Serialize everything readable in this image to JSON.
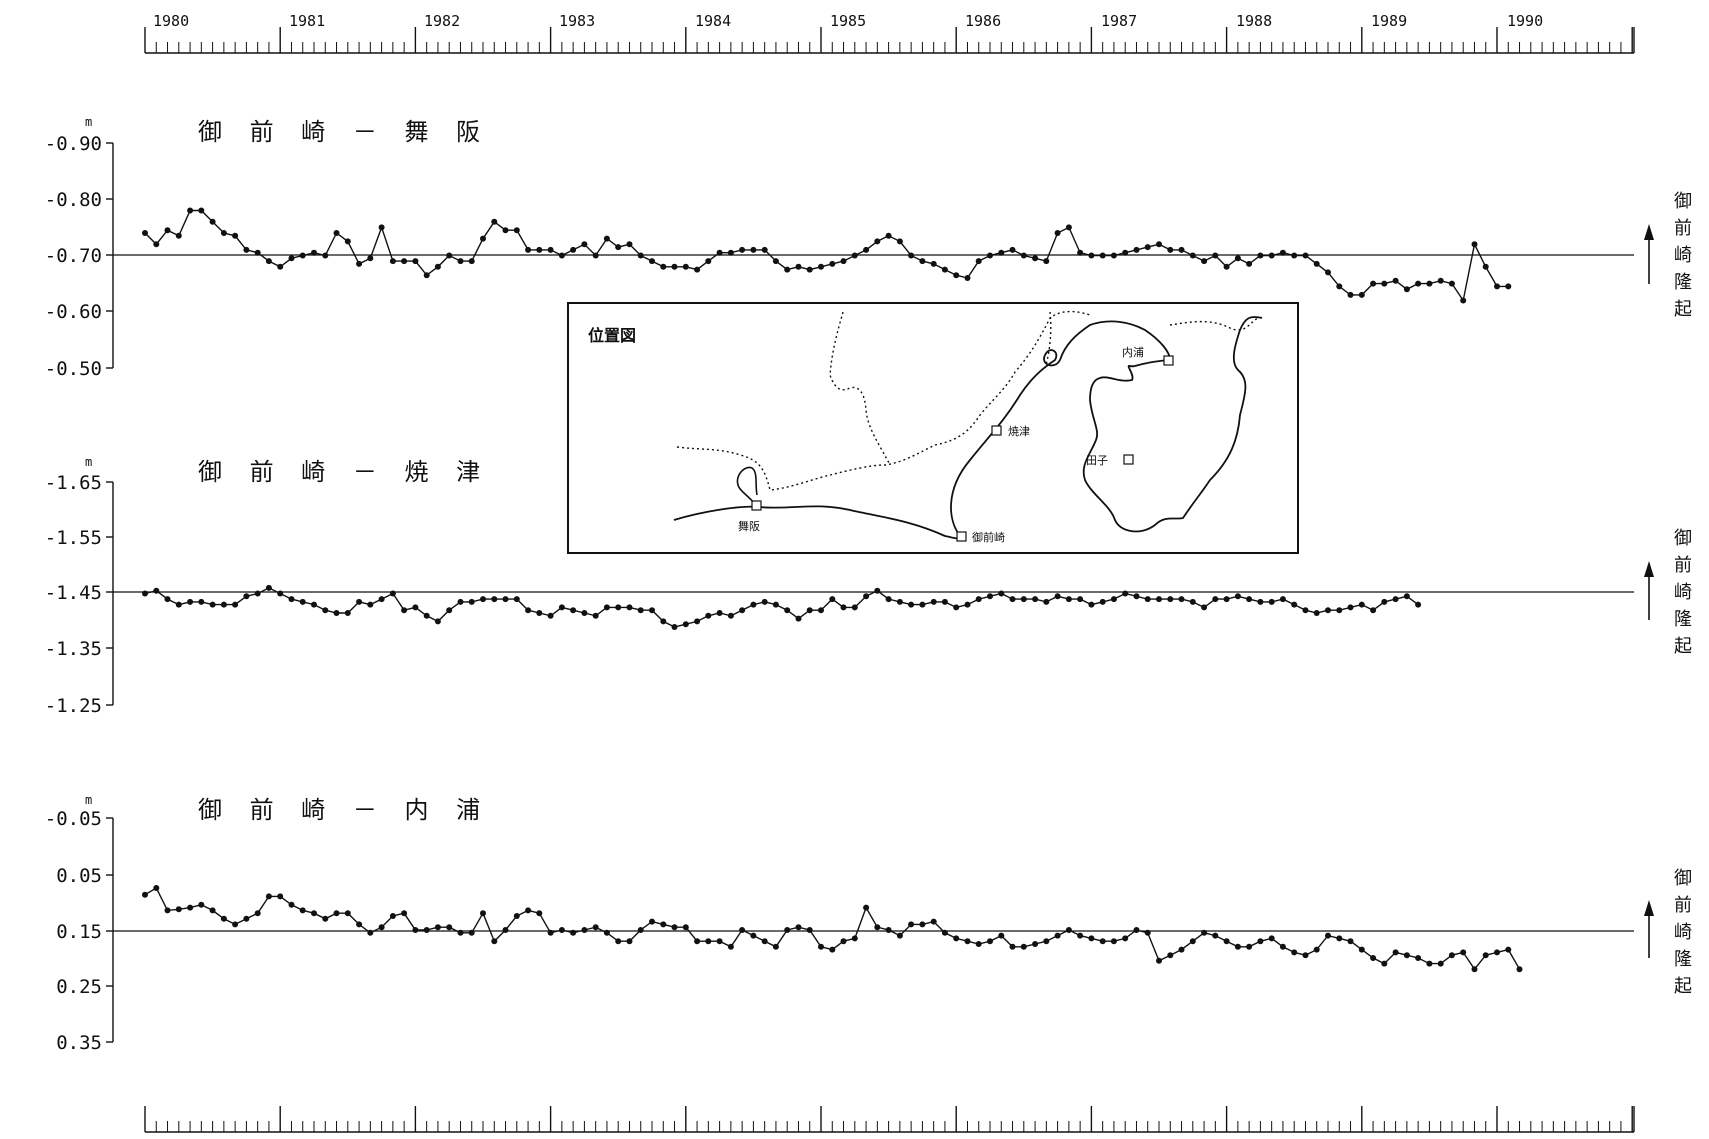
{
  "chart_data": [
    {
      "type": "line",
      "title": "御 前 崎 － 舞 阪",
      "y_unit": "m",
      "y_tick_labels": [
        "-0.90",
        "-0.80",
        "-0.70",
        "-0.60",
        "-0.50"
      ],
      "ylim": [
        -0.9,
        -0.5
      ],
      "y_axis_inverted": true,
      "reference_line": -0.7,
      "side_label": "御前崎隆起",
      "x": {
        "start": "1980-01",
        "frequency": "monthly"
      },
      "values": [
        -0.74,
        -0.72,
        -0.745,
        -0.735,
        -0.78,
        -0.78,
        -0.76,
        -0.74,
        -0.735,
        -0.71,
        -0.705,
        -0.69,
        -0.68,
        -0.695,
        -0.7,
        -0.705,
        -0.7,
        -0.74,
        -0.725,
        -0.685,
        -0.695,
        -0.75,
        -0.69,
        -0.69,
        -0.69,
        -0.665,
        -0.68,
        -0.7,
        -0.69,
        -0.69,
        -0.73,
        -0.76,
        -0.745,
        -0.745,
        -0.71,
        -0.71,
        -0.71,
        -0.7,
        -0.71,
        -0.72,
        -0.7,
        -0.73,
        -0.715,
        -0.72,
        -0.7,
        -0.69,
        -0.68,
        -0.68,
        -0.68,
        -0.675,
        -0.69,
        -0.705,
        -0.705,
        -0.71,
        -0.71,
        -0.71,
        -0.69,
        -0.675,
        -0.68,
        -0.675,
        -0.68,
        -0.685,
        -0.69,
        -0.7,
        -0.71,
        -0.725,
        -0.735,
        -0.725,
        -0.7,
        -0.69,
        -0.685,
        -0.675,
        -0.665,
        -0.66,
        -0.69,
        -0.7,
        -0.705,
        -0.71,
        -0.7,
        -0.695,
        -0.69,
        -0.74,
        -0.75,
        -0.705,
        -0.7,
        -0.7,
        -0.7,
        -0.705,
        -0.71,
        -0.715,
        -0.72,
        -0.71,
        -0.71,
        -0.7,
        -0.69,
        -0.7,
        -0.68,
        -0.695,
        -0.685,
        -0.7,
        -0.7,
        -0.705,
        -0.7,
        -0.7,
        -0.685,
        -0.67,
        -0.645,
        -0.63,
        -0.63,
        -0.65,
        -0.65,
        -0.655,
        -0.64,
        -0.65,
        -0.65,
        -0.655,
        -0.65,
        -0.62,
        -0.72,
        -0.68,
        -0.645,
        -0.645
      ]
    },
    {
      "type": "line",
      "title": "御 前 崎 － 焼 津",
      "y_unit": "m",
      "y_tick_labels": [
        "-1.65",
        "-1.55",
        "-1.45",
        "-1.35",
        "-1.25"
      ],
      "ylim": [
        -1.65,
        -1.25
      ],
      "y_axis_inverted": true,
      "reference_line": -1.45,
      "side_label": "御前崎隆起",
      "x": {
        "start": "1980-01",
        "frequency": "monthly"
      },
      "values": [
        -1.45,
        -1.455,
        -1.44,
        -1.43,
        -1.435,
        -1.435,
        -1.43,
        -1.43,
        -1.43,
        -1.445,
        -1.45,
        -1.46,
        -1.45,
        -1.44,
        -1.435,
        -1.43,
        -1.42,
        -1.415,
        -1.415,
        -1.435,
        -1.43,
        -1.44,
        -1.45,
        -1.42,
        -1.425,
        -1.41,
        -1.4,
        -1.42,
        -1.435,
        -1.435,
        -1.44,
        -1.44,
        -1.44,
        -1.44,
        -1.42,
        -1.415,
        -1.41,
        -1.425,
        -1.42,
        -1.415,
        -1.41,
        -1.425,
        -1.425,
        -1.425,
        -1.42,
        -1.42,
        -1.4,
        -1.39,
        -1.395,
        -1.4,
        -1.41,
        -1.415,
        -1.41,
        -1.42,
        -1.43,
        -1.435,
        -1.43,
        -1.42,
        -1.405,
        -1.42,
        -1.42,
        -1.44,
        -1.425,
        -1.425,
        -1.445,
        -1.455,
        -1.44,
        -1.435,
        -1.43,
        -1.43,
        -1.435,
        -1.435,
        -1.425,
        -1.43,
        -1.44,
        -1.445,
        -1.45,
        -1.44,
        -1.44,
        -1.44,
        -1.435,
        -1.445,
        -1.44,
        -1.44,
        -1.43,
        -1.435,
        -1.44,
        -1.45,
        -1.445,
        -1.44,
        -1.44,
        -1.44,
        -1.44,
        -1.435,
        -1.425,
        -1.44,
        -1.44,
        -1.445,
        -1.44,
        -1.435,
        -1.435,
        -1.44,
        -1.43,
        -1.42,
        -1.415,
        -1.42,
        -1.42,
        -1.425,
        -1.43,
        -1.42,
        -1.435,
        -1.44,
        -1.445,
        -1.43
      ]
    },
    {
      "type": "line",
      "title": "御 前 崎 － 内 浦",
      "y_unit": "m",
      "y_tick_labels": [
        "-0.05",
        "0.05",
        "0.15",
        "0.25",
        "0.35"
      ],
      "ylim": [
        -0.05,
        0.35
      ],
      "y_axis_inverted": false,
      "reference_line": 0.15,
      "side_label": "御前崎隆起",
      "x": {
        "start": "1980-01",
        "frequency": "monthly"
      },
      "values": [
        0.087,
        0.075,
        0.115,
        0.113,
        0.11,
        0.105,
        0.115,
        0.13,
        0.14,
        0.13,
        0.12,
        0.09,
        0.09,
        0.105,
        0.115,
        0.12,
        0.13,
        0.12,
        0.12,
        0.14,
        0.155,
        0.145,
        0.125,
        0.12,
        0.15,
        0.15,
        0.145,
        0.145,
        0.155,
        0.155,
        0.12,
        0.17,
        0.15,
        0.125,
        0.115,
        0.12,
        0.155,
        0.15,
        0.155,
        0.15,
        0.145,
        0.155,
        0.17,
        0.17,
        0.15,
        0.135,
        0.14,
        0.145,
        0.145,
        0.17,
        0.17,
        0.17,
        0.18,
        0.15,
        0.16,
        0.17,
        0.18,
        0.15,
        0.145,
        0.15,
        0.18,
        0.185,
        0.17,
        0.165,
        0.11,
        0.145,
        0.15,
        0.16,
        0.14,
        0.14,
        0.135,
        0.155,
        0.165,
        0.17,
        0.175,
        0.17,
        0.16,
        0.18,
        0.18,
        0.175,
        0.17,
        0.16,
        0.15,
        0.16,
        0.165,
        0.17,
        0.17,
        0.165,
        0.15,
        0.155,
        0.205,
        0.195,
        0.185,
        0.17,
        0.155,
        0.16,
        0.17,
        0.18,
        0.18,
        0.17,
        0.165,
        0.18,
        0.19,
        0.195,
        0.185,
        0.16,
        0.165,
        0.17,
        0.185,
        0.2,
        0.21,
        0.19,
        0.195,
        0.2,
        0.21,
        0.21,
        0.195,
        0.19,
        0.22,
        0.195,
        0.19,
        0.185,
        0.22
      ]
    }
  ],
  "time_axis": {
    "years": [
      "1980",
      "1981",
      "1982",
      "1983",
      "1984",
      "1985",
      "1986",
      "1987",
      "1988",
      "1989",
      "1990"
    ]
  },
  "inset_map": {
    "title": "位置図",
    "labels": [
      "舞阪",
      "焼津",
      "御前崎",
      "内浦",
      "田子"
    ]
  }
}
